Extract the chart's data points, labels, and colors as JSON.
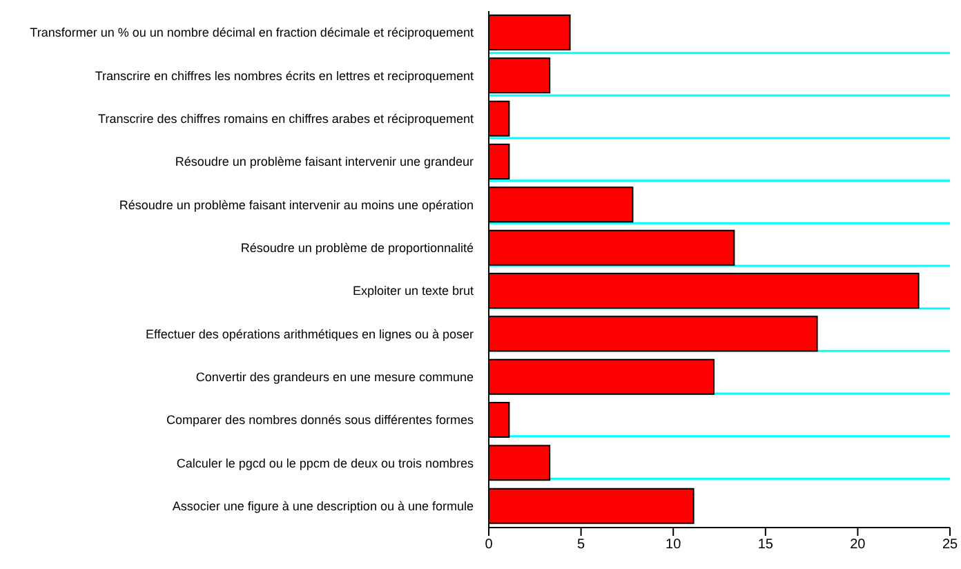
{
  "chart_data": {
    "type": "bar",
    "orientation": "horizontal",
    "categories": [
      "Transformer un % ou un nombre décimal en fraction décimale et réciproquement",
      "Transcrire en chiffres les nombres écrits en lettres et reciproquement",
      "Transcrire des chiffres romains en chiffres arabes et réciproquement",
      "Résoudre un problème faisant intervenir une grandeur",
      "Résoudre un problème faisant intervenir au moins une opération",
      "Résoudre un problème de proportionnalité",
      "Exploiter un texte brut",
      "Effectuer des opérations arithmétiques en lignes ou à poser",
      "Convertir des grandeurs en une mesure commune",
      "Comparer des nombres donnés sous différentes formes",
      "Calculer le pgcd ou le ppcm de deux ou trois nombres",
      "Associer une figure à une description ou à une formule"
    ],
    "values": [
      4.4,
      3.3,
      1.1,
      1.1,
      7.8,
      13.3,
      23.3,
      17.8,
      12.2,
      1.1,
      3.3,
      11.1
    ],
    "color": "#ff0000",
    "xlim": [
      0,
      25
    ],
    "xticks": [
      0,
      5,
      10,
      15,
      20,
      25
    ],
    "grid": "y"
  }
}
